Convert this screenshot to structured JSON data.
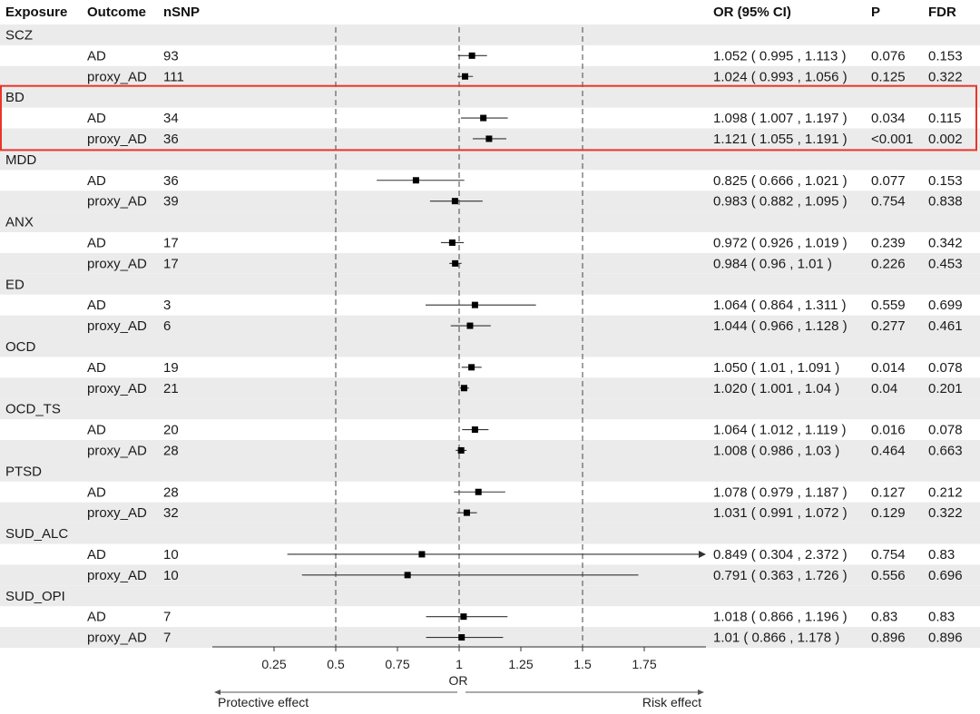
{
  "headers": {
    "exposure": "Exposure",
    "outcome": "Outcome",
    "nsnp": "nSNP",
    "or_ci": "OR (95% CI)",
    "p": "P",
    "fdr": "FDR"
  },
  "axis": {
    "label": "OR",
    "left_arrow_label": "Protective effect",
    "right_arrow_label": "Risk effect"
  },
  "colors": {
    "band": "#ebebeb",
    "highlight": "#e8352a",
    "marker": "#000000",
    "ci_line": "#333333"
  },
  "chart_data": {
    "type": "forest",
    "xlabel": "OR",
    "xlim": [
      0,
      2
    ],
    "ticks": [
      "0.25",
      "0.5",
      "0.75",
      "1",
      "1.25",
      "1.5",
      "1.75"
    ],
    "tick_values": [
      0.25,
      0.5,
      0.75,
      1,
      1.25,
      1.5,
      1.75
    ],
    "reference_lines": [
      0.5,
      1,
      1.5
    ],
    "highlighted_group": "BD",
    "groups": [
      {
        "exposure": "SCZ",
        "rows": [
          {
            "outcome": "AD",
            "nsnp": "93",
            "or": 1.052,
            "lo": 0.995,
            "hi": 1.113,
            "or_ci": "1.052 ( 0.995 ,  1.113 )",
            "p": "0.076",
            "fdr": "0.153"
          },
          {
            "outcome": "proxy_AD",
            "nsnp": "111",
            "or": 1.024,
            "lo": 0.993,
            "hi": 1.056,
            "or_ci": "1.024 ( 0.993 ,  1.056 )",
            "p": "0.125",
            "fdr": "0.322"
          }
        ]
      },
      {
        "exposure": "BD",
        "rows": [
          {
            "outcome": "AD",
            "nsnp": "34",
            "or": 1.098,
            "lo": 1.007,
            "hi": 1.197,
            "or_ci": "1.098 ( 1.007 ,  1.197 )",
            "p": "0.034",
            "fdr": "0.115"
          },
          {
            "outcome": "proxy_AD",
            "nsnp": "36",
            "or": 1.121,
            "lo": 1.055,
            "hi": 1.191,
            "or_ci": "1.121 ( 1.055 ,  1.191 )",
            "p": "<0.001",
            "fdr": "0.002"
          }
        ]
      },
      {
        "exposure": "MDD",
        "rows": [
          {
            "outcome": "AD",
            "nsnp": "36",
            "or": 0.825,
            "lo": 0.666,
            "hi": 1.021,
            "or_ci": "0.825 ( 0.666 ,  1.021 )",
            "p": "0.077",
            "fdr": "0.153"
          },
          {
            "outcome": "proxy_AD",
            "nsnp": "39",
            "or": 0.983,
            "lo": 0.882,
            "hi": 1.095,
            "or_ci": "0.983 ( 0.882 ,  1.095 )",
            "p": "0.754",
            "fdr": "0.838"
          }
        ]
      },
      {
        "exposure": "ANX",
        "rows": [
          {
            "outcome": "AD",
            "nsnp": "17",
            "or": 0.972,
            "lo": 0.926,
            "hi": 1.019,
            "or_ci": "0.972 ( 0.926 ,  1.019 )",
            "p": "0.239",
            "fdr": "0.342"
          },
          {
            "outcome": "proxy_AD",
            "nsnp": "17",
            "or": 0.984,
            "lo": 0.96,
            "hi": 1.01,
            "or_ci": "0.984 ( 0.96 ,  1.01 )",
            "p": "0.226",
            "fdr": "0.453"
          }
        ]
      },
      {
        "exposure": "ED",
        "rows": [
          {
            "outcome": "AD",
            "nsnp": "3",
            "or": 1.064,
            "lo": 0.864,
            "hi": 1.311,
            "or_ci": "1.064 ( 0.864 ,  1.311 )",
            "p": "0.559",
            "fdr": "0.699"
          },
          {
            "outcome": "proxy_AD",
            "nsnp": "6",
            "or": 1.044,
            "lo": 0.966,
            "hi": 1.128,
            "or_ci": "1.044 ( 0.966 ,  1.128 )",
            "p": "0.277",
            "fdr": "0.461"
          }
        ]
      },
      {
        "exposure": "OCD",
        "rows": [
          {
            "outcome": "AD",
            "nsnp": "19",
            "or": 1.05,
            "lo": 1.01,
            "hi": 1.091,
            "or_ci": "1.050 ( 1.01 ,  1.091 )",
            "p": "0.014",
            "fdr": "0.078"
          },
          {
            "outcome": "proxy_AD",
            "nsnp": "21",
            "or": 1.02,
            "lo": 1.001,
            "hi": 1.04,
            "or_ci": "1.020 ( 1.001 ,  1.04 )",
            "p": "0.04",
            "fdr": "0.201"
          }
        ]
      },
      {
        "exposure": "OCD_TS",
        "rows": [
          {
            "outcome": "AD",
            "nsnp": "20",
            "or": 1.064,
            "lo": 1.012,
            "hi": 1.119,
            "or_ci": "1.064 ( 1.012 ,  1.119 )",
            "p": "0.016",
            "fdr": "0.078"
          },
          {
            "outcome": "proxy_AD",
            "nsnp": "28",
            "or": 1.008,
            "lo": 0.986,
            "hi": 1.03,
            "or_ci": "1.008 ( 0.986 ,  1.03 )",
            "p": "0.464",
            "fdr": "0.663"
          }
        ]
      },
      {
        "exposure": "PTSD",
        "rows": [
          {
            "outcome": "AD",
            "nsnp": "28",
            "or": 1.078,
            "lo": 0.979,
            "hi": 1.187,
            "or_ci": "1.078 ( 0.979 ,  1.187 )",
            "p": "0.127",
            "fdr": "0.212"
          },
          {
            "outcome": "proxy_AD",
            "nsnp": "32",
            "or": 1.031,
            "lo": 0.991,
            "hi": 1.072,
            "or_ci": "1.031 ( 0.991 ,  1.072 )",
            "p": "0.129",
            "fdr": "0.322"
          }
        ]
      },
      {
        "exposure": "SUD_ALC",
        "rows": [
          {
            "outcome": "AD",
            "nsnp": "10",
            "or": 0.849,
            "lo": 0.304,
            "hi": 2.372,
            "or_ci": "0.849 ( 0.304 ,  2.372 )",
            "p": "0.754",
            "fdr": "0.83"
          },
          {
            "outcome": "proxy_AD",
            "nsnp": "10",
            "or": 0.791,
            "lo": 0.363,
            "hi": 1.726,
            "or_ci": "0.791 ( 0.363 ,  1.726 )",
            "p": "0.556",
            "fdr": "0.696"
          }
        ]
      },
      {
        "exposure": "SUD_OPI",
        "rows": [
          {
            "outcome": "AD",
            "nsnp": "7",
            "or": 1.018,
            "lo": 0.866,
            "hi": 1.196,
            "or_ci": "1.018 ( 0.866 ,  1.196 )",
            "p": "0.83",
            "fdr": "0.83"
          },
          {
            "outcome": "proxy_AD",
            "nsnp": "7",
            "or": 1.01,
            "lo": 0.866,
            "hi": 1.178,
            "or_ci": "1.01 ( 0.866 ,  1.178 )",
            "p": "0.896",
            "fdr": "0.896"
          }
        ]
      }
    ]
  }
}
